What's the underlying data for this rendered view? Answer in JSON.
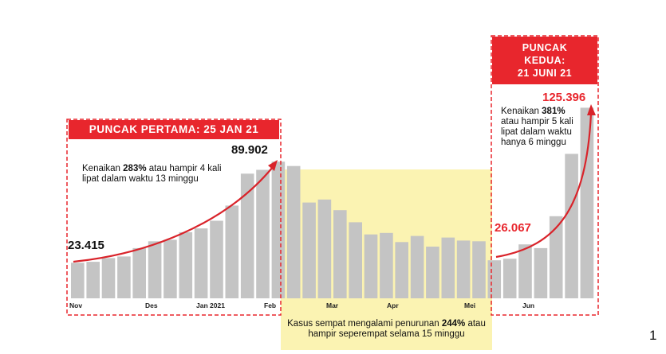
{
  "chart_data": {
    "type": "bar",
    "title": "",
    "xlabel": "",
    "ylabel": "",
    "ylim": [
      0,
      135000
    ],
    "grid": false,
    "colors": {
      "bar": "#c4c4c4",
      "accent": "#e8262d",
      "highlight": "#fbf3b2"
    },
    "x_ticks": [
      "Nov",
      "Des",
      "Jan 2021",
      "Feb",
      "Mar",
      "Apr",
      "Mei",
      "Jun"
    ],
    "values": [
      23415,
      24000,
      26500,
      27500,
      33000,
      37500,
      38500,
      43500,
      46000,
      51000,
      61000,
      82000,
      84500,
      89902,
      87000,
      63000,
      65000,
      58000,
      50000,
      42000,
      43000,
      37000,
      41000,
      34000,
      40000,
      38000,
      37500,
      25000,
      26067,
      35500,
      33000,
      54000,
      95000,
      125396
    ]
  },
  "peaks": {
    "first_label": "PUNCAK PERTAMA: 25 JAN 21",
    "second_label_lines": [
      "PUNCAK",
      "KEDUA:",
      "21 JUNI 21"
    ]
  },
  "values_labels": {
    "start1": "23.415",
    "end1": "89.902",
    "start2": "26.067",
    "end2": "125.396"
  },
  "notes": {
    "first": {
      "a": "Kenaikan ",
      "b": "283%",
      "c": " atau hampir 4 kali lipat dalam waktu 13 minggu"
    },
    "second": {
      "a": "Kenaikan ",
      "b": "381%",
      "c": " atau hampir 5 kali lipat dalam waktu hanya 6 minggu"
    },
    "decline": {
      "a": "Kasus sempat mengalami penurunan ",
      "b": "244%",
      "c": " atau hampir seperempat selama 15 minggu"
    }
  },
  "page_number": "1"
}
